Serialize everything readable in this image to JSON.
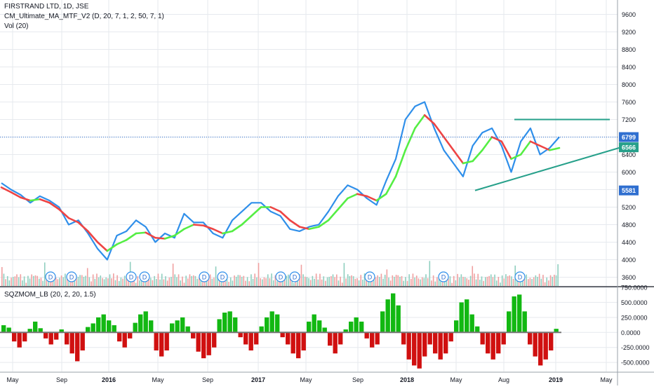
{
  "legend": {
    "main": "FIRSTRAND LTD, 1D, JSE",
    "indicator": "CM_Ultimate_MA_MTF_V2 (D, 20, 7, 1, 2, 50, 7, 1)",
    "volume": "Vol (20)",
    "oscillator": "SQZMOM_LB (20, 2, 20, 1.5)"
  },
  "colors": {
    "price": "#2f8fea",
    "ma_up": "#55ee44",
    "ma_down": "#ee4444",
    "trendline": "#26a08a",
    "last_price_line": "#2f6fd0",
    "osc_pos": "#12b812",
    "osc_neg": "#d01010",
    "vol_up": "#8fcfbf",
    "vol_down": "#f0a0a0",
    "axis": "#131722",
    "grid": "#e6e9ee"
  },
  "chart_data": [
    {
      "type": "line",
      "x_axis_labels": [
        "May",
        "Sep",
        "2016",
        "May",
        "Sep",
        "2017",
        "May",
        "Sep",
        "2018",
        "May",
        "Aug",
        "2019",
        "May"
      ],
      "ylim": [
        3400,
        9800
      ],
      "y_ticks": [
        3600,
        4000,
        4400,
        4800,
        5200,
        5600,
        6000,
        6400,
        6800,
        7200,
        7600,
        8000,
        8400,
        8800,
        9200,
        9600
      ],
      "series": [
        {
          "values": [
            5750,
            5600,
            5480,
            5300,
            5450,
            5350,
            5200,
            4800,
            4900,
            4600,
            4250,
            4000,
            4550,
            4650,
            4900,
            4750,
            4400,
            4600,
            4500,
            5050,
            4850,
            4850,
            4600,
            4500,
            4900,
            5100,
            5300,
            5300,
            5100,
            5000,
            4700,
            4650,
            4750,
            4800,
            5100,
            5450,
            5700,
            5600,
            5400,
            5250,
            5800,
            6300,
            7200,
            7500,
            7600,
            7000,
            6500,
            6200,
            5900,
            6600,
            6900,
            7000,
            6600,
            6000,
            6700,
            7000,
            6400,
            6550,
            6800
          ]
        },
        {
          "values": [
            5650,
            5540,
            5420,
            5350,
            5380,
            5300,
            5150,
            4950,
            4850,
            4650,
            4400,
            4200,
            4350,
            4450,
            4600,
            4620,
            4500,
            4480,
            4550,
            4700,
            4800,
            4780,
            4700,
            4600,
            4650,
            4800,
            5000,
            5200,
            5200,
            5100,
            4900,
            4750,
            4700,
            4750,
            4900,
            5150,
            5400,
            5500,
            5450,
            5350,
            5500,
            5900,
            6500,
            7000,
            7300,
            7100,
            6800,
            6500,
            6200,
            6250,
            6500,
            6800,
            6700,
            6300,
            6400,
            6700,
            6600,
            6500,
            6550
          ]
        }
      ],
      "price_labels": [
        {
          "value": 6799,
          "text": "6799"
        },
        {
          "value": 6566,
          "text": "6566"
        },
        {
          "value": 5581,
          "text": "5581"
        }
      ],
      "dividend_markers": [
        "D",
        "D",
        "D",
        "D",
        "D",
        "D",
        "D",
        "D",
        "D",
        "D",
        "D",
        "D"
      ]
    },
    {
      "type": "bar",
      "ylim": [
        -650,
        750
      ],
      "y_ticks": [
        750,
        500,
        250,
        0,
        -250,
        -500
      ],
      "y_tick_labels": [
        "750.0000",
        "500.0000",
        "250.0000",
        "0.0000",
        "-250.0000",
        "-500.0000"
      ],
      "values": [
        120,
        80,
        -150,
        -250,
        -150,
        60,
        180,
        70,
        -100,
        -200,
        -120,
        50,
        -200,
        -350,
        -480,
        -300,
        90,
        150,
        250,
        300,
        200,
        120,
        -150,
        -250,
        -100,
        160,
        300,
        350,
        200,
        -300,
        -400,
        -300,
        150,
        200,
        250,
        100,
        -100,
        -320,
        -430,
        -380,
        -250,
        220,
        330,
        350,
        250,
        -80,
        -200,
        -300,
        -200,
        100,
        250,
        350,
        300,
        -80,
        -200,
        -350,
        -430,
        -300,
        180,
        300,
        200,
        80,
        -220,
        -350,
        -200,
        50,
        180,
        250,
        180,
        -100,
        -250,
        -200,
        350,
        550,
        650,
        450,
        -200,
        -450,
        -550,
        -600,
        -400,
        -200,
        -350,
        -450,
        -350,
        -150,
        200,
        500,
        550,
        300,
        100,
        -200,
        -350,
        -450,
        -350,
        -200,
        350,
        600,
        630,
        350,
        -200,
        -400,
        -550,
        -450,
        -300,
        60
      ]
    }
  ]
}
